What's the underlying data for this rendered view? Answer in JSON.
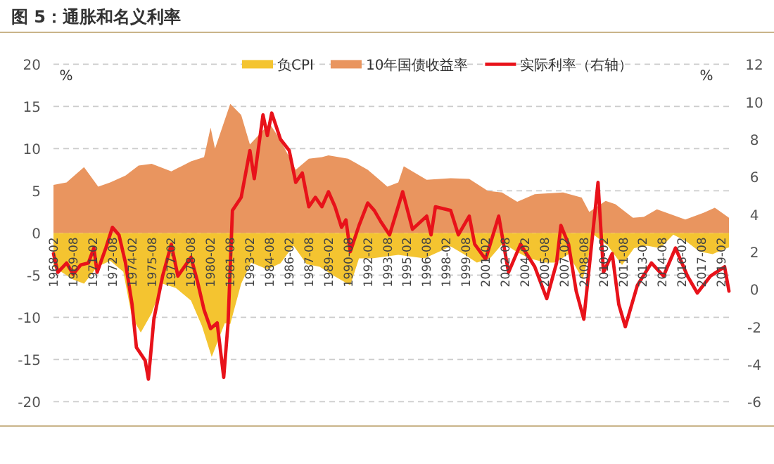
{
  "chart_data": {
    "type": "area",
    "title": "图 5：通胀和名义利率",
    "ylabel": "%",
    "y2label": "%",
    "legend": "top",
    "grid": "y",
    "xlim": [
      "1968-02",
      "2019-09"
    ],
    "xticks": [
      "1968-02",
      "1969-08",
      "1971-02",
      "1972-08",
      "1974-02",
      "1975-08",
      "1977-02",
      "1978-08",
      "1980-02",
      "1981-08",
      "1983-02",
      "1984-08",
      "1986-02",
      "1987-08",
      "1989-02",
      "1990-08",
      "1992-02",
      "1993-08",
      "1995-02",
      "1996-08",
      "1998-02",
      "1999-08",
      "2001-02",
      "2002-08",
      "2004-02",
      "2005-08",
      "2007-02",
      "2008-08",
      "2010-02",
      "2011-08",
      "2013-02",
      "2014-08",
      "2016-02",
      "2017-08",
      "2019-02"
    ],
    "ylim": [
      -20,
      20
    ],
    "yticks": [
      -20,
      -15,
      -10,
      -5,
      0,
      5,
      10,
      15,
      20
    ],
    "y2lim": [
      -6,
      12
    ],
    "y2ticks": [
      -6,
      -4,
      -2,
      0,
      2,
      4,
      6,
      8,
      10,
      12
    ],
    "series": [
      {
        "name": "10年国债收益率",
        "color": "#e9955f",
        "x": [
          "1968-02",
          "1969-02",
          "1970-06",
          "1971-07",
          "1972-06",
          "1973-08",
          "1974-08",
          "1975-08",
          "1977-02",
          "1978-08",
          "1979-08",
          "1980-02",
          "1980-06",
          "1981-08",
          "1982-06",
          "1983-02",
          "1984-08",
          "1985-06",
          "1986-02",
          "1986-08",
          "1987-08",
          "1988-08",
          "1989-02",
          "1990-08",
          "1992-02",
          "1993-08",
          "1994-06",
          "1994-11",
          "1996-08",
          "1998-06",
          "1999-11",
          "2001-04",
          "2002-05",
          "2003-07",
          "2004-11",
          "2007-01",
          "2008-06",
          "2009-01",
          "2010-04",
          "2011-01",
          "2012-05",
          "2013-03",
          "2014-03",
          "2016-05",
          "2017-10",
          "2018-08",
          "2019-09"
        ],
        "values": [
          5.7,
          6,
          7.8,
          5.5,
          6,
          6.8,
          8,
          8.2,
          7.3,
          8.5,
          9,
          12.5,
          10,
          15.3,
          14,
          10.5,
          13,
          11,
          9,
          7.5,
          8.8,
          9,
          9.2,
          8.8,
          7.5,
          5.5,
          6,
          7.9,
          6.3,
          6.5,
          6.4,
          5,
          4.8,
          3.7,
          4.6,
          4.8,
          4.2,
          2.5,
          3.8,
          3.4,
          1.8,
          1.9,
          2.8,
          1.6,
          2.4,
          3,
          1.8
        ]
      },
      {
        "name": "负CPI",
        "color": "#f4c430",
        "x": [
          "1968-02",
          "1969-08",
          "1970-06",
          "1971-06",
          "1972-06",
          "1973-06",
          "1974-02",
          "1974-10",
          "1975-08",
          "1976-06",
          "1977-06",
          "1978-08",
          "1979-06",
          "1980-03",
          "1980-08",
          "1981-03",
          "1981-08",
          "1982-06",
          "1983-03",
          "1984-06",
          "1985-06",
          "1986-06",
          "1987-06",
          "1988-06",
          "1989-06",
          "1990-10",
          "1991-06",
          "1992-06",
          "1993-06",
          "1994-06",
          "1995-06",
          "1996-06",
          "1997-06",
          "1998-06",
          "1999-06",
          "2000-06",
          "2001-06",
          "2002-06",
          "2003-06",
          "2004-06",
          "2005-09",
          "2006-06",
          "2007-06",
          "2008-07",
          "2009-05",
          "2010-06",
          "2011-07",
          "2012-06",
          "2013-06",
          "2014-06",
          "2015-06",
          "2016-06",
          "2017-06",
          "2018-06",
          "2019-09"
        ],
        "values": [
          -4,
          -5.5,
          -6,
          -4,
          -3.3,
          -4.6,
          -10,
          -11.8,
          -9.5,
          -6,
          -6.5,
          -8,
          -11,
          -14.7,
          -13,
          -10.7,
          -10.8,
          -6,
          -3.5,
          -4.3,
          -3.6,
          -1.5,
          -3.7,
          -4,
          -5,
          -6.2,
          -3,
          -3,
          -2.8,
          -2.6,
          -2.8,
          -3,
          -2.3,
          -1.6,
          -2.5,
          -3.5,
          -3,
          -1.2,
          -2.2,
          -3,
          -3.5,
          -3.5,
          -2.5,
          -5.5,
          -0.2,
          -1.5,
          -3.8,
          -1.8,
          -1.5,
          -1.8,
          -0.2,
          -1,
          -2.2,
          -2.5,
          -1.7
        ]
      },
      {
        "name": "实际利率（右轴）",
        "type": "line",
        "axis": "y2",
        "color": "#e8121a",
        "x": [
          "1968-02",
          "1968-06",
          "1969-02",
          "1969-08",
          "1970-03",
          "1970-10",
          "1971-03",
          "1971-06",
          "1972-02",
          "1972-08",
          "1973-02",
          "1973-08",
          "1974-02",
          "1974-06",
          "1975-02",
          "1975-05",
          "1975-10",
          "1976-06",
          "1977-02",
          "1977-08",
          "1978-08",
          "1979-02",
          "1979-08",
          "1980-02",
          "1980-08",
          "1981-02",
          "1981-06",
          "1981-10",
          "1982-06",
          "1983-02",
          "1983-06",
          "1984-02",
          "1984-06",
          "1984-10",
          "1985-06",
          "1986-02",
          "1986-08",
          "1987-02",
          "1987-08",
          "1988-02",
          "1988-08",
          "1989-02",
          "1989-08",
          "1990-02",
          "1990-06",
          "1990-10",
          "1991-06",
          "1992-02",
          "1992-08",
          "1993-02",
          "1993-10",
          "1994-10",
          "1995-07",
          "1996-08",
          "1996-12",
          "1997-04",
          "1998-06",
          "1999-01",
          "1999-11",
          "2000-04",
          "2001-02",
          "2002-02",
          "2002-11",
          "2003-10",
          "2004-11",
          "2005-10",
          "2006-07",
          "2006-11",
          "2007-06",
          "2008-01",
          "2008-08",
          "2009-09",
          "2010-02",
          "2010-10",
          "2011-04",
          "2011-10",
          "2012-09",
          "2013-10",
          "2014-09",
          "2015-08",
          "2016-07",
          "2017-04",
          "2018-04",
          "2019-05",
          "2019-09"
        ],
        "values": [
          1.9,
          0.9,
          1.4,
          0.8,
          1.3,
          1.4,
          2.2,
          0.9,
          2.2,
          3.3,
          2.9,
          1.4,
          -0.8,
          -3.1,
          -3.8,
          -4.8,
          -1.6,
          0.7,
          2.4,
          0.7,
          1.7,
          0.4,
          -1.1,
          -2.1,
          -1.8,
          -4.7,
          -1.8,
          4.2,
          4.9,
          7.4,
          5.9,
          9.3,
          8.2,
          9.4,
          8,
          7.4,
          5.7,
          6.2,
          4.4,
          4.9,
          4.4,
          5.2,
          4.4,
          3.3,
          3.7,
          2,
          3.4,
          4.6,
          4.2,
          3.6,
          2.9,
          5.2,
          3.2,
          3.9,
          2.9,
          4.4,
          4.2,
          2.9,
          3.9,
          2.4,
          1.6,
          3.9,
          0.9,
          2.4,
          1.2,
          -0.5,
          1.4,
          3.4,
          2.4,
          -0.1,
          -1.6,
          5.7,
          0.9,
          1.9,
          -0.8,
          -2,
          0.2,
          1.4,
          0.7,
          2.2,
          0.7,
          -0.2,
          0.7,
          1.2,
          -0.1
        ]
      }
    ]
  }
}
